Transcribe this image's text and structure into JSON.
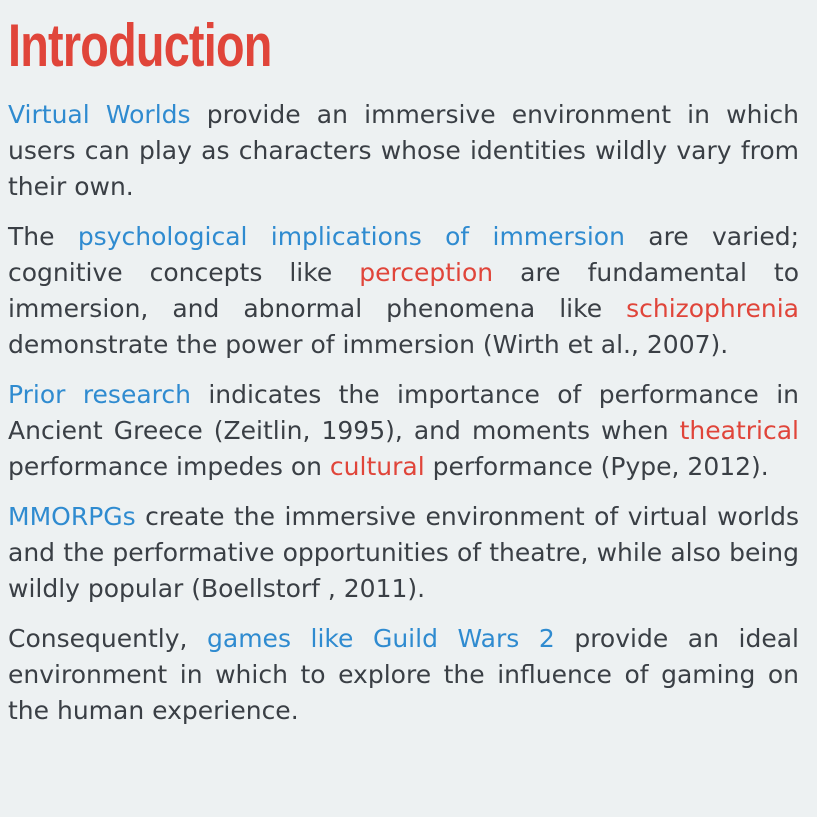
{
  "colors": {
    "background": "#edf1f2",
    "title": "#e0453a",
    "body_text": "#3a3f45",
    "highlight_blue": "#2f8bd0",
    "highlight_red": "#e0453a"
  },
  "title": "Introduction",
  "paragraphs": [
    {
      "segments": [
        {
          "text": "Virtual Worlds",
          "style": "blue"
        },
        {
          "text": " provide an immersive environment in which users can play as characters whose identities wildly vary from their own.",
          "style": "plain"
        }
      ]
    },
    {
      "segments": [
        {
          "text": "The ",
          "style": "plain"
        },
        {
          "text": "psychological implications of immersion",
          "style": "blue"
        },
        {
          "text": " are varied; cognitive concepts like ",
          "style": "plain"
        },
        {
          "text": "perception",
          "style": "red"
        },
        {
          "text": " are fundamental to immersion, and abnormal phenomena like ",
          "style": "plain"
        },
        {
          "text": "schizophrenia",
          "style": "red"
        },
        {
          "text": " demonstrate the power of immersion (Wirth et al., 2007).",
          "style": "plain"
        }
      ]
    },
    {
      "segments": [
        {
          "text": "Prior research",
          "style": "blue"
        },
        {
          "text": " indicates the importance of performance in Ancient Greece (Zeitlin, 1995), and moments when ",
          "style": "plain"
        },
        {
          "text": "theatrical",
          "style": "red"
        },
        {
          "text": " performance impedes on ",
          "style": "plain"
        },
        {
          "text": "cultural",
          "style": "red"
        },
        {
          "text": " performance (Pype, 2012).",
          "style": "plain"
        }
      ]
    },
    {
      "segments": [
        {
          "text": "MMORPGs",
          "style": "blue"
        },
        {
          "text": "  create the immersive environment of virtual worlds and the performative opportunities of theatre, while also being wildly popular (Boellstorf , 2011).",
          "style": "plain"
        }
      ]
    },
    {
      "segments": [
        {
          "text": "Consequently, ",
          "style": "plain"
        },
        {
          "text": "games like Guild Wars 2",
          "style": "blue"
        },
        {
          "text": " provide an ideal environment in which to explore the influence of gaming on the human experience.",
          "style": "plain"
        }
      ]
    }
  ]
}
